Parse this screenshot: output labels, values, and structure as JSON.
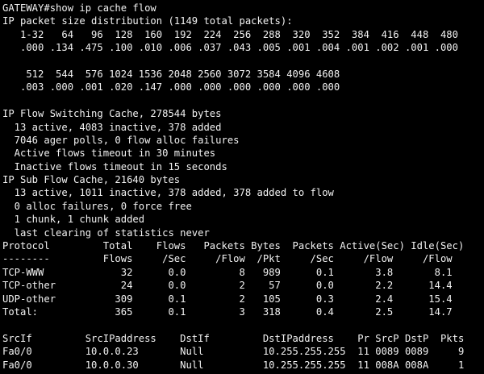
{
  "terminal": {
    "colors": {
      "background": "#000000",
      "foreground": "#f2f2f2"
    },
    "prompt": "GATEWAY#",
    "command": "show ip cache flow",
    "lines": [
      "GATEWAY#show ip cache flow",
      "IP packet size distribution (1149 total packets):",
      "   1-32   64   96  128  160  192  224  256  288  320  352  384  416  448  480",
      "   .000 .134 .475 .100 .010 .006 .037 .043 .005 .001 .004 .001 .002 .001 .000",
      "",
      "    512  544  576 1024 1536 2048 2560 3072 3584 4096 4608",
      "   .003 .000 .001 .020 .147 .000 .000 .000 .000 .000 .000",
      "",
      "IP Flow Switching Cache, 278544 bytes",
      "  13 active, 4083 inactive, 378 added",
      "  7046 ager polls, 0 flow alloc failures",
      "  Active flows timeout in 30 minutes",
      "  Inactive flows timeout in 15 seconds",
      "IP Sub Flow Cache, 21640 bytes",
      "  13 active, 1011 inactive, 378 added, 378 added to flow",
      "  0 alloc failures, 0 force free",
      "  1 chunk, 1 chunk added",
      "  last clearing of statistics never",
      "Protocol         Total    Flows   Packets Bytes  Packets Active(Sec) Idle(Sec)",
      "--------         Flows     /Sec     /Flow  /Pkt     /Sec     /Flow     /Flow",
      "TCP-WWW             32      0.0         8   989      0.1       3.8       8.1",
      "TCP-other           24      0.0         2    57      0.0       2.2      14.4",
      "UDP-other          309      0.1         2   105      0.3       2.4      15.4",
      "Total:             365      0.1         3   318      0.4       2.5      14.7",
      "",
      "SrcIf         SrcIPaddress    DstIf         DstIPaddress    Pr SrcP DstP  Pkts",
      "Fa0/0         10.0.0.23       Null          10.255.255.255  11 0089 0089     9",
      "Fa0/0         10.0.0.30       Null          10.255.255.255  11 008A 008A     1"
    ]
  },
  "structured": {
    "packet_size_distribution": {
      "title": "IP packet size distribution (1149 total packets):",
      "total_packets": 1149,
      "buckets": [
        "1-32",
        "64",
        "96",
        "128",
        "160",
        "192",
        "224",
        "256",
        "288",
        "320",
        "352",
        "384",
        "416",
        "448",
        "480",
        "512",
        "544",
        "576",
        "1024",
        "1536",
        "2048",
        "2560",
        "3072",
        "3584",
        "4096",
        "4608"
      ],
      "fractions": [
        ".000",
        ".134",
        ".475",
        ".100",
        ".010",
        ".006",
        ".037",
        ".043",
        ".005",
        ".001",
        ".004",
        ".001",
        ".002",
        ".001",
        ".000",
        ".003",
        ".000",
        ".001",
        ".020",
        ".147",
        ".000",
        ".000",
        ".000",
        ".000",
        ".000",
        ".000"
      ]
    },
    "ip_flow_switching_cache": {
      "bytes": 278544,
      "active": 13,
      "inactive": 4083,
      "added": 378,
      "ager_polls": 7046,
      "flow_alloc_failures": 0,
      "active_flows_timeout_minutes": 30,
      "inactive_flows_timeout_seconds": 15
    },
    "ip_sub_flow_cache": {
      "bytes": 21640,
      "active": 13,
      "inactive": 1011,
      "added": 378,
      "added_to_flow": 378,
      "alloc_failures": 0,
      "force_free": 0,
      "chunks": 1,
      "chunks_added": 1,
      "last_clearing_of_statistics": "never"
    },
    "protocol_table": {
      "headers": [
        "Protocol",
        "Total Flows",
        "Flows /Sec",
        "Packets /Flow",
        "Bytes /Pkt",
        "Packets /Sec",
        "Active(Sec) /Flow",
        "Idle(Sec) /Flow"
      ],
      "rows": [
        [
          "TCP-WWW",
          "32",
          "0.0",
          "8",
          "989",
          "0.1",
          "3.8",
          "8.1"
        ],
        [
          "TCP-other",
          "24",
          "0.0",
          "2",
          "57",
          "0.0",
          "2.2",
          "14.4"
        ],
        [
          "UDP-other",
          "309",
          "0.1",
          "2",
          "105",
          "0.3",
          "2.4",
          "15.4"
        ],
        [
          "Total:",
          "365",
          "0.1",
          "3",
          "318",
          "0.4",
          "2.5",
          "14.7"
        ]
      ]
    },
    "flow_table": {
      "headers": [
        "SrcIf",
        "SrcIPaddress",
        "DstIf",
        "DstIPaddress",
        "Pr",
        "SrcP",
        "DstP",
        "Pkts"
      ],
      "rows": [
        [
          "Fa0/0",
          "10.0.0.23",
          "Null",
          "10.255.255.255",
          "11",
          "0089",
          "0089",
          "9"
        ],
        [
          "Fa0/0",
          "10.0.0.30",
          "Null",
          "10.255.255.255",
          "11",
          "008A",
          "008A",
          "1"
        ]
      ]
    }
  }
}
